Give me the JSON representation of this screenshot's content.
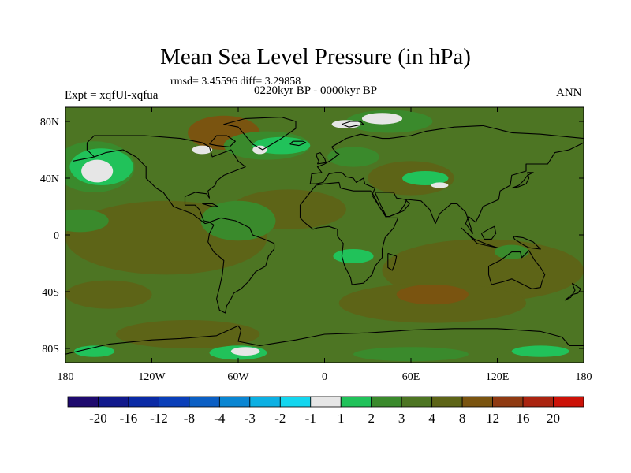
{
  "title": "Mean Sea Level Pressure (in hPa)",
  "stats": "rmsd= 3.45596 diff= 3.29858",
  "period": "0220kyr BP - 0000kyr BP",
  "experiment": "Expt = xqfUl-xqfua",
  "season": "ANN",
  "axes": {
    "x_ticks": [
      {
        "value": -180,
        "label": "180"
      },
      {
        "value": -120,
        "label": "120W"
      },
      {
        "value": -60,
        "label": "60W"
      },
      {
        "value": 0,
        "label": "0"
      },
      {
        "value": 60,
        "label": "60E"
      },
      {
        "value": 120,
        "label": "120E"
      },
      {
        "value": 180,
        "label": "180"
      }
    ],
    "y_ticks": [
      {
        "value": 80,
        "label": "80N"
      },
      {
        "value": 40,
        "label": "40N"
      },
      {
        "value": 0,
        "label": "0"
      },
      {
        "value": -40,
        "label": "40S"
      },
      {
        "value": -80,
        "label": "80S"
      }
    ],
    "lon_range": [
      -180,
      180
    ],
    "lat_range": [
      -90,
      90
    ]
  },
  "colorbar": {
    "colors": [
      "#1e0a6e",
      "#11198c",
      "#0a2aa5",
      "#0a3fb9",
      "#0b5fc4",
      "#0a86d2",
      "#0cb0e3",
      "#13d6ef",
      "#e6e6e6",
      "#21c25a",
      "#3a8a2c",
      "#4d7523",
      "#5d6417",
      "#7a5410",
      "#8f3a12",
      "#aa2410",
      "#cc1208"
    ],
    "labels": [
      "-20",
      "-16",
      "-12",
      "-8",
      "-4",
      "-3",
      "-2",
      "-1",
      "1",
      "2",
      "3",
      "4",
      "8",
      "12",
      "16",
      "20"
    ]
  },
  "field_colors": {
    "base": "#4d7523",
    "low_2_3": "#3a8a2c",
    "low_1_2": "#21c25a",
    "near_zero": "#e6e6e6",
    "high_4_8": "#5d6417",
    "high_8_12": "#7a5410",
    "coast": "#000000"
  }
}
